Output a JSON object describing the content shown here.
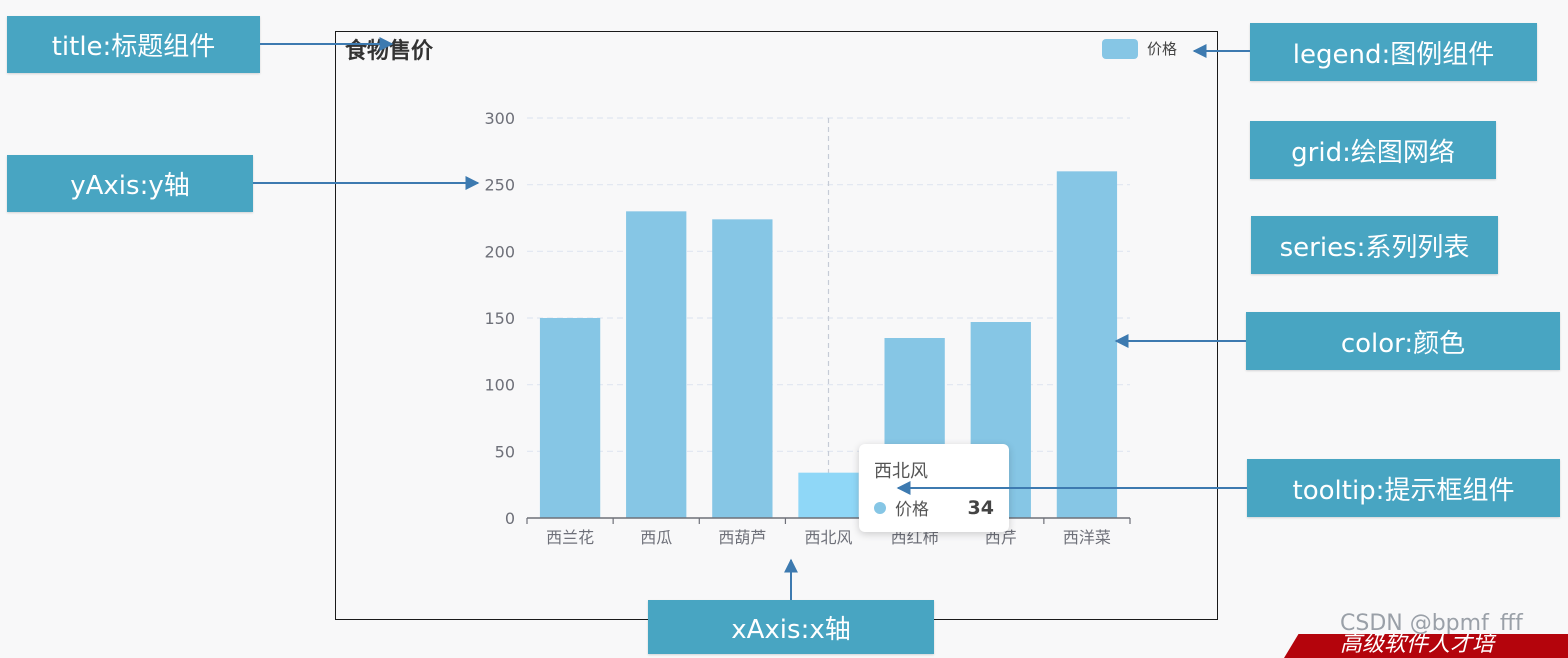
{
  "chart_data": {
    "type": "bar",
    "title": "食物售价",
    "categories": [
      "西兰花",
      "西瓜",
      "西葫芦",
      "西北风",
      "西红柿",
      "西芹",
      "西洋菜"
    ],
    "series": [
      {
        "name": "价格",
        "values": [
          150,
          230,
          224,
          34,
          135,
          147,
          260
        ]
      }
    ],
    "ylim": [
      0,
      300
    ],
    "y_ticks": [
      0,
      50,
      100,
      150,
      200,
      250,
      300
    ],
    "grid": true,
    "legend_position": "top-right",
    "highlighted_category": "西北风",
    "colors": {
      "bar": "#86c6e5",
      "bar_highlight": "#8fd7f7",
      "axis": "#6e7079",
      "grid": "#e0e6f1"
    }
  },
  "tooltip": {
    "title": "西北风",
    "series_name": "价格",
    "value": "34"
  },
  "callouts": {
    "title": "title:标题组件",
    "yaxis": "yAxis:y轴",
    "legend": "legend:图例组件",
    "grid": "grid:绘图网络",
    "series": "series:系列列表",
    "color": "color:颜色",
    "tooltip": "tooltip:提示框组件",
    "xaxis": "xAxis:x轴"
  },
  "watermark": "CSDN @bpmf_fff",
  "banner_text": "高级软件人才培"
}
